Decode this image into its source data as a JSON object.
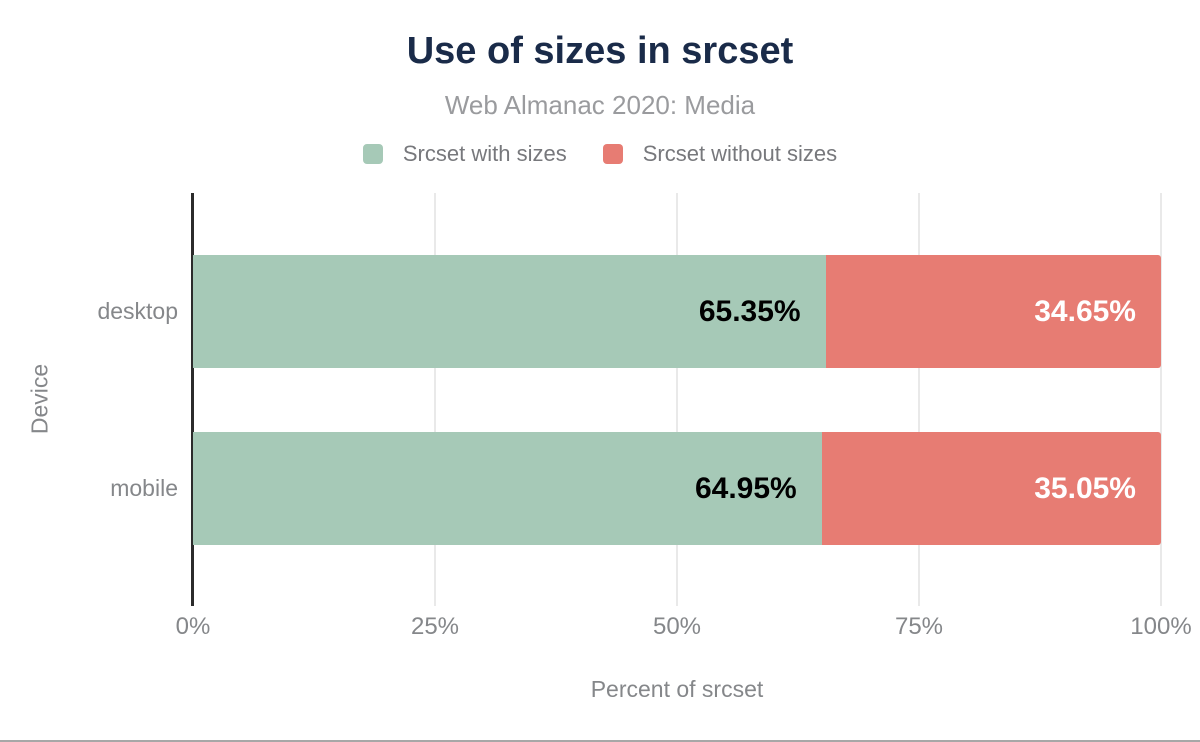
{
  "chart_data": {
    "type": "bar",
    "orientation": "horizontal",
    "stacked": true,
    "title": "Use of sizes in srcset",
    "subtitle": "Web Almanac 2020: Media",
    "xlabel": "Percent of srcset",
    "ylabel": "Device",
    "xlim": [
      0,
      100
    ],
    "grid": "vertical",
    "legend_position": "top",
    "categories": [
      "desktop",
      "mobile"
    ],
    "series": [
      {
        "name": "Srcset with sizes",
        "color": "#a6c9b7",
        "label_color": "#000000",
        "values": [
          65.35,
          64.95
        ],
        "labels": [
          "65.35%",
          "64.95%"
        ]
      },
      {
        "name": "Srcset without sizes",
        "color": "#e77c73",
        "label_color": "#ffffff",
        "values": [
          34.65,
          35.05
        ],
        "labels": [
          "34.65%",
          "35.05%"
        ]
      }
    ],
    "x_ticks": [
      {
        "label": "0%",
        "value": 0
      },
      {
        "label": "25%",
        "value": 25
      },
      {
        "label": "50%",
        "value": 50
      },
      {
        "label": "75%",
        "value": 75
      },
      {
        "label": "100%",
        "value": 100
      }
    ]
  },
  "colors": {
    "background": "#ffffff",
    "title": "#1a2b49",
    "subtitle": "#9a9b9e",
    "legend_text": "#77787c",
    "axis_text": "#85878a",
    "axis_line": "#2b2b2b",
    "gridline": "#e9e9e9",
    "bottom_edge": "#a7a7a7"
  }
}
